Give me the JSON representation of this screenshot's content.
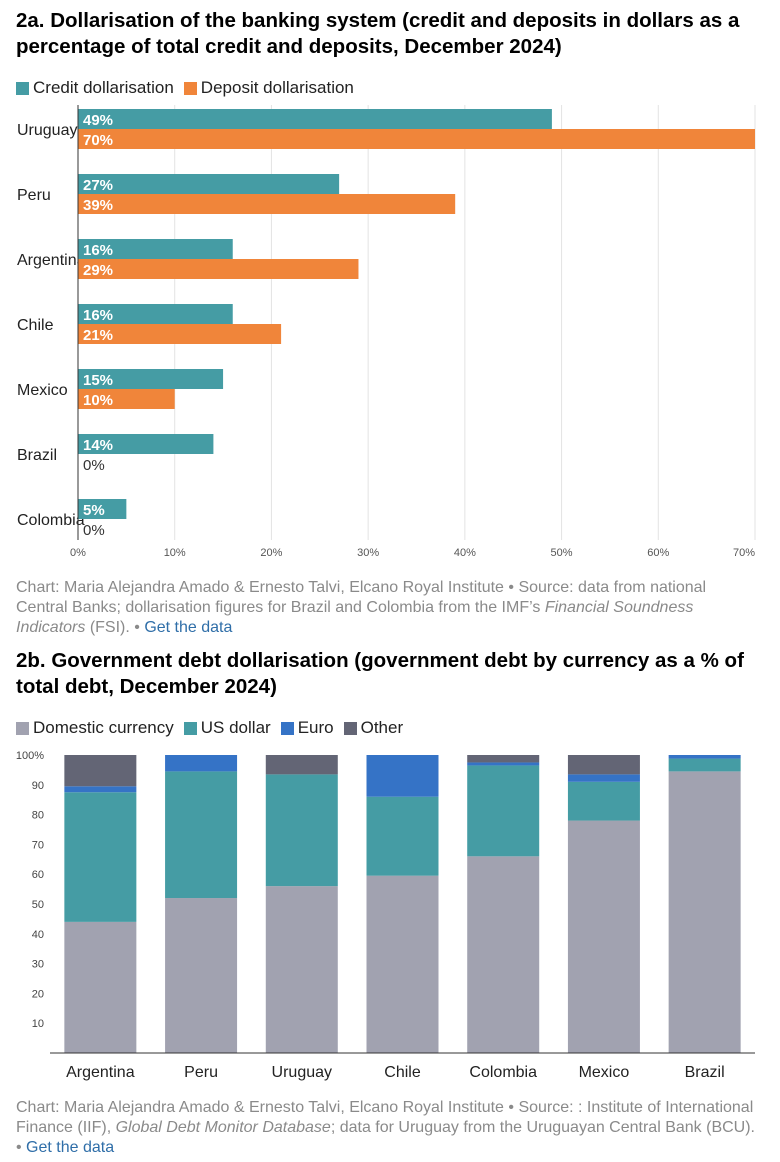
{
  "chart_data": [
    {
      "type": "bar",
      "orientation": "horizontal",
      "title": "2a. Dollarisation of the banking system (credit and deposits in dollars as a percentage of total credit and deposits, December 2024)",
      "categories": [
        "Uruguay",
        "Peru",
        "Argentina",
        "Chile",
        "Mexico",
        "Brazil",
        "Colombia"
      ],
      "series": [
        {
          "name": "Credit dollarisation",
          "color": "#459ca4",
          "values": [
            49,
            27,
            16,
            16,
            15,
            14,
            5
          ]
        },
        {
          "name": "Deposit dollarisation",
          "color": "#f0853a",
          "values": [
            70,
            39,
            29,
            21,
            10,
            0,
            0
          ]
        }
      ],
      "data_labels": [
        [
          "49%",
          "27%",
          "16%",
          "16%",
          "15%",
          "14%",
          "5%"
        ],
        [
          "70%",
          "39%",
          "29%",
          "21%",
          "10%",
          "0%",
          "0%"
        ]
      ],
      "xlim": [
        0,
        70
      ],
      "xticks": [
        "0%",
        "10%",
        "20%",
        "30%",
        "40%",
        "50%",
        "60%",
        "70%"
      ],
      "grid": true,
      "legend": "top-left",
      "footer": {
        "credit": "Chart: Maria Alejandra Amado & Ernesto Talvi, Elcano Royal Institute • Source: data from national Central Banks; dollarisation figures for Brazil and Colombia from the IMF’s ",
        "italic": "Financial Soundness Indicators",
        "after": " (FSI). • ",
        "link": "Get the data"
      }
    },
    {
      "type": "bar",
      "stacked": true,
      "title": "2b. Government debt dollarisation (government debt by currency as a % of total debt, December 2024)",
      "categories": [
        "Argentina",
        "Peru",
        "Uruguay",
        "Chile",
        "Colombia",
        "Mexico",
        "Brazil"
      ],
      "series": [
        {
          "name": "Domestic currency",
          "color": "#a1a2b0",
          "values": [
            44,
            52,
            56,
            59.5,
            66,
            78,
            94.5
          ]
        },
        {
          "name": "US dollar",
          "color": "#459ca4",
          "values": [
            43.5,
            42.5,
            37.5,
            26.5,
            30.5,
            13,
            4.3
          ]
        },
        {
          "name": "Euro",
          "color": "#3573c6",
          "values": [
            2,
            5.5,
            0,
            14,
            1,
            2.5,
            1.2
          ]
        },
        {
          "name": "Other",
          "color": "#636575",
          "values": [
            10.5,
            0,
            6.5,
            0,
            2.5,
            6.5,
            0
          ]
        }
      ],
      "ylim": [
        0,
        100
      ],
      "yticks": [
        "",
        "10",
        "20",
        "30",
        "40",
        "50",
        "60",
        "70",
        "80",
        "90",
        "100%"
      ],
      "grid": false,
      "legend": "top-left",
      "footer": {
        "credit": "Chart: Maria Alejandra Amado & Ernesto Talvi, Elcano Royal Institute • Source: : Institute of International Finance (IIF), ",
        "italic": "Global Debt Monitor Database",
        "after": "; data for Uruguay from the Uruguayan Central Bank (BCU). • ",
        "link": "Get the data"
      }
    }
  ]
}
